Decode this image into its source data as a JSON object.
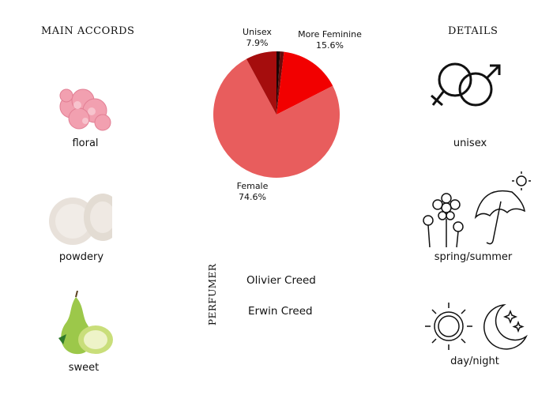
{
  "main_accords": {
    "heading": "MAIN ACCORDS",
    "items": [
      {
        "label": "floral",
        "icon": "carnation-flower-image"
      },
      {
        "label": "powdery",
        "icon": "powder-image"
      },
      {
        "label": "sweet",
        "icon": "pear-image"
      }
    ]
  },
  "details": {
    "heading": "DETAILS",
    "items": [
      {
        "label": "unisex",
        "icon": "gender-symbols-icon"
      },
      {
        "label": "spring/summer",
        "icon": "flowers-umbrella-sun-icon"
      },
      {
        "label": "day/night",
        "icon": "sun-moon-icon"
      }
    ]
  },
  "chart_data": {
    "type": "pie",
    "start": "top",
    "direction": "clockwise",
    "slices": [
      {
        "label": "",
        "value": 0.9,
        "color": "#1a0505",
        "show_label": false
      },
      {
        "label": "",
        "value": 1.0,
        "color": "#6b0a0a",
        "show_label": false
      },
      {
        "label": "More Feminine",
        "value": 15.6,
        "display": "15.6%",
        "color": "#f20000",
        "show_label": true
      },
      {
        "label": "Female",
        "value": 74.6,
        "display": "74.6%",
        "color": "#e85d5d",
        "show_label": true
      },
      {
        "label": "Unisex",
        "value": 7.9,
        "display": "7.9%",
        "color": "#a50d0d",
        "show_label": true
      }
    ]
  },
  "perfumer": {
    "heading": "PERFUMER",
    "names": [
      "Olivier Creed",
      "Erwin Creed"
    ]
  }
}
